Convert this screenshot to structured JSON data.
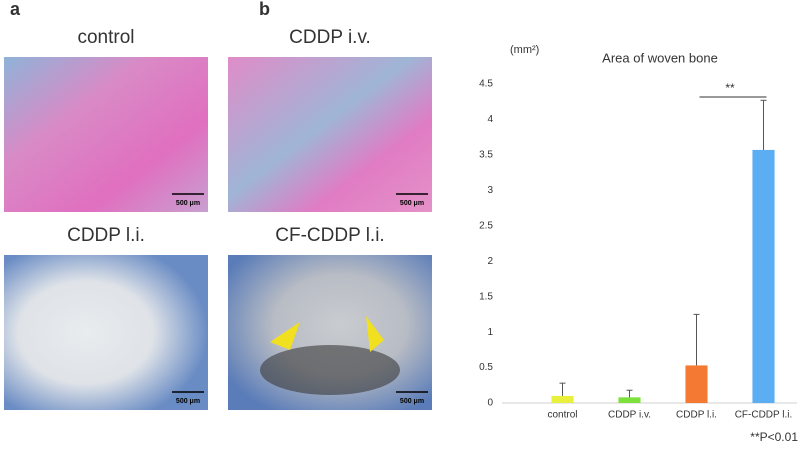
{
  "panel_a": {
    "label": "a",
    "images": [
      {
        "title": "control",
        "scale": "500 μm"
      },
      {
        "title": "CDDP i.v.",
        "scale": "500 μm"
      },
      {
        "title": "CDDP l.i.",
        "scale": "500 μm"
      },
      {
        "title": "CF-CDDP l.i.",
        "scale": "500 μm"
      }
    ]
  },
  "chart_data": {
    "type": "bar",
    "panel_label": "b",
    "title": "Area of woven bone",
    "unit": "(mm²)",
    "categories": [
      "control",
      "CDDP i.v.",
      "CDDP l.i.",
      "CF-CDDP l.i."
    ],
    "values": [
      0.1,
      0.08,
      0.53,
      3.57
    ],
    "errors": [
      0.18,
      0.1,
      0.72,
      0.7
    ],
    "colors": [
      "#e8f03c",
      "#7ee03c",
      "#f47a34",
      "#5caef2"
    ],
    "ylim": [
      0,
      4.5
    ],
    "yticks": [
      0,
      0.5,
      1,
      1.5,
      2,
      2.5,
      3,
      3.5,
      4,
      4.5
    ],
    "significance": "**",
    "note": "**P<0.01"
  }
}
